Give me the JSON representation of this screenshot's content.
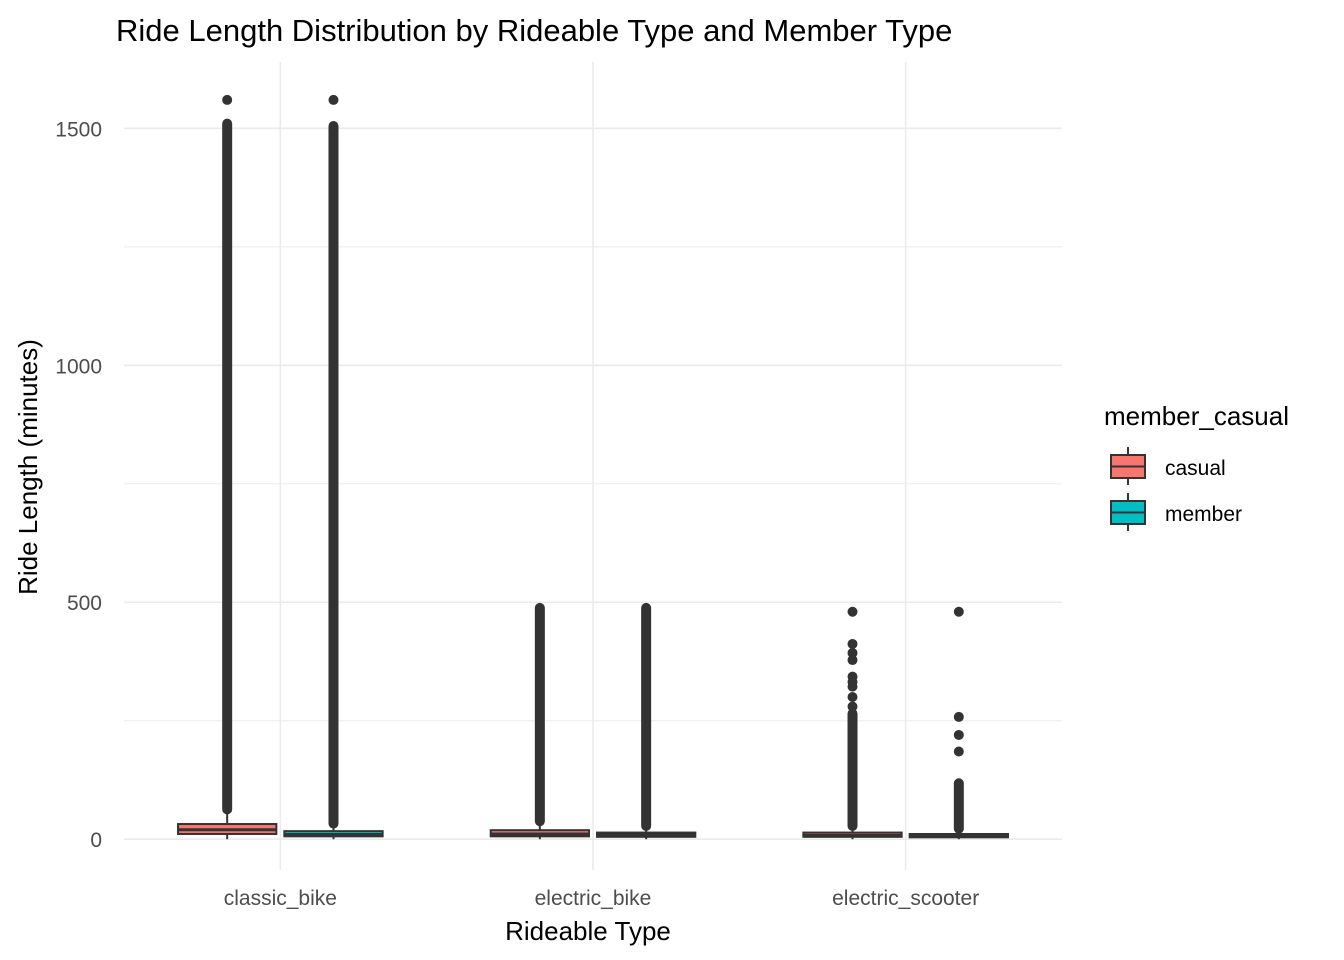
{
  "chart_data": {
    "type": "boxplot",
    "title": "Ride Length Distribution by Rideable Type and Member Type",
    "xlabel": "Rideable Type",
    "ylabel": "Ride Length (minutes)",
    "categories": [
      "classic_bike",
      "electric_bike",
      "electric_scooter"
    ],
    "ylim": [
      -65,
      1640
    ],
    "yticks": [
      0,
      500,
      1000,
      1500
    ],
    "grid": true,
    "legend": {
      "title": "member_casual",
      "position": "right",
      "entries": [
        "casual",
        "member"
      ]
    },
    "series": [
      {
        "name": "casual",
        "color": "#F8766D",
        "boxes": [
          {
            "category": "classic_bike",
            "q1": 11,
            "median": 20,
            "q3": 32,
            "whisker_low": 0,
            "whisker_high": 63,
            "outlier_range": [
              63,
              1510
            ],
            "outliers": [
              1560
            ]
          },
          {
            "category": "electric_bike",
            "q1": 6,
            "median": 11,
            "q3": 19,
            "whisker_low": 0,
            "whisker_high": 38,
            "outlier_range": [
              38,
              488
            ],
            "outliers": []
          },
          {
            "category": "electric_scooter",
            "q1": 5,
            "median": 8,
            "q3": 14,
            "whisker_low": 0,
            "whisker_high": 28,
            "outlier_range": [
              28,
              265
            ],
            "outliers": [
              280,
              300,
              322,
              332,
              343,
              378,
              393,
              412,
              480
            ]
          }
        ]
      },
      {
        "name": "member",
        "color": "#00BFC4",
        "boxes": [
          {
            "category": "classic_bike",
            "q1": 6,
            "median": 10,
            "q3": 17,
            "whisker_low": 0,
            "whisker_high": 33,
            "outlier_range": [
              33,
              1505
            ],
            "outliers": [
              1560
            ]
          },
          {
            "category": "electric_bike",
            "q1": 5,
            "median": 9,
            "q3": 14,
            "whisker_low": 0,
            "whisker_high": 28,
            "outlier_range": [
              28,
              488
            ],
            "outliers": []
          },
          {
            "category": "electric_scooter",
            "q1": 4,
            "median": 7,
            "q3": 11,
            "whisker_low": 0,
            "whisker_high": 22,
            "outlier_range": [
              22,
              118
            ],
            "outliers": [
              185,
              220,
              258,
              480
            ]
          }
        ]
      }
    ]
  }
}
